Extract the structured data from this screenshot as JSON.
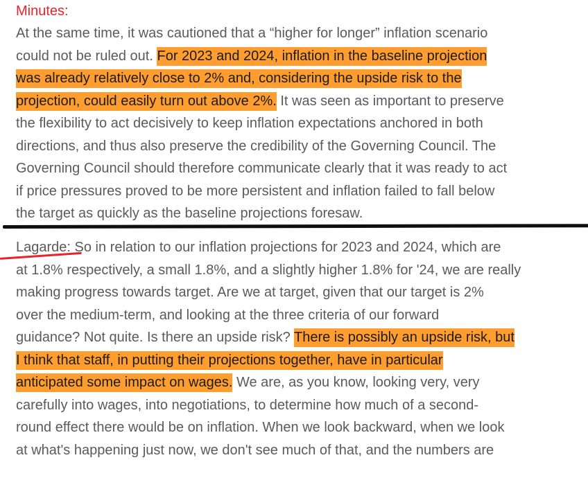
{
  "minutes": {
    "heading": "Minutes:",
    "lines": [
      [
        {
          "t": "At the same time, it was cautioned that a “higher for longer” inflation scenario",
          "h": false
        }
      ],
      [
        {
          "t": "could not be ruled out. ",
          "h": false
        },
        {
          "t": "For 2023 and 2024, inflation in the baseline projection",
          "h": true
        }
      ],
      [
        {
          "t": "was already relatively close to 2% and, considering the upside risk to the",
          "h": true
        }
      ],
      [
        {
          "t": "projection, could easily turn out above 2%.",
          "h": true
        },
        {
          "t": " It was seen as important to preserve",
          "h": false
        }
      ],
      [
        {
          "t": "the flexibility to act decisively to keep inflation expectations anchored in both",
          "h": false
        }
      ],
      [
        {
          "t": "directions, and thus also preserve the credibility of the Governing Council. The",
          "h": false
        }
      ],
      [
        {
          "t": "Governing Council should therefore communicate clearly that it was ready to act",
          "h": false
        }
      ],
      [
        {
          "t": "if price pressures proved to be more persistent and inflation failed to fall below",
          "h": false
        }
      ],
      [
        {
          "t": "the target as quickly as the baseline projections foresaw.",
          "h": false
        }
      ]
    ]
  },
  "lagarde": {
    "lines": [
      [
        {
          "t": "Lagarde:",
          "h": false
        },
        {
          "t": " So in relation to our inflation projections for 2023 and 2024, which are",
          "h": false
        }
      ],
      [
        {
          "t": "at 1.8% respectively, a small 1.8%, and a slightly higher 1.8% for '24, we are really",
          "h": false
        }
      ],
      [
        {
          "t": "making progress towards target. Are we at target, given that our target is 2%",
          "h": false
        }
      ],
      [
        {
          "t": "over the medium-term, and looking at the three criteria of our forward",
          "h": false
        }
      ],
      [
        {
          "t": "guidance? Not quite. Is there an upside risk? ",
          "h": false
        },
        {
          "t": "There is possibly an upside risk, but",
          "h": true
        }
      ],
      [
        {
          "t": "I think that staff, in putting their projections together, have in particular",
          "h": true
        }
      ],
      [
        {
          "t": "anticipated some impact on wages.",
          "h": true
        },
        {
          "t": " We are, as you know, looking very, very",
          "h": false
        }
      ],
      [
        {
          "t": "carefully into wages, into negotiations, to determine how much of a second-",
          "h": false
        }
      ],
      [
        {
          "t": "round effect there would be on inflation. When we look backward, when we look",
          "h": false
        }
      ],
      [
        {
          "t": "at what's happening just now, we don't see much of that, and the numbers are",
          "h": false
        }
      ]
    ]
  },
  "colors": {
    "highlight": "#ff9d2f",
    "heading": "#e8232a",
    "divider": "#0f0f0f",
    "speaker_underline": "#e8232a"
  }
}
